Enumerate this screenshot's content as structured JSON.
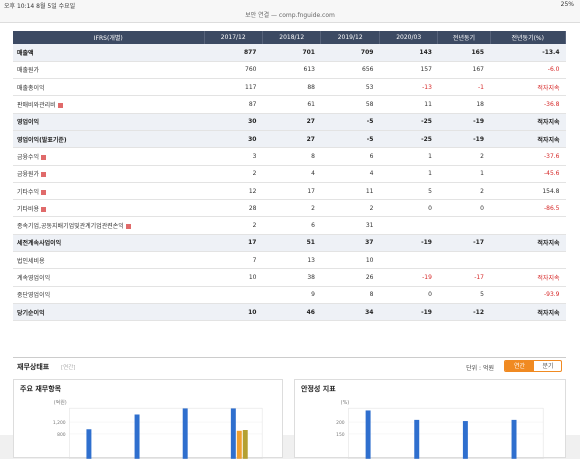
{
  "statusbar": {
    "time": "오후 10:14  8월 5일 수요일",
    "battery": "25%"
  },
  "urlbar": {
    "text": "보안 연결 — comp.fnguide.com"
  },
  "table": {
    "headers": [
      "IFRS(개별)",
      "2017/12",
      "2018/12",
      "2019/12",
      "2020/03",
      "전년동기",
      "전년동기(%)"
    ],
    "rows": [
      {
        "label": "매출액",
        "values": [
          "877",
          "701",
          "709",
          "143",
          "165",
          "-13.4"
        ],
        "bold": true,
        "shade": true,
        "plus": false
      },
      {
        "label": "매출원가",
        "values": [
          "760",
          "613",
          "656",
          "157",
          "167",
          "-6.0"
        ],
        "bold": false,
        "shade": false,
        "plus": false
      },
      {
        "label": "매출총이익",
        "values": [
          "117",
          "88",
          "53",
          "-13",
          "-1",
          "적자지속"
        ],
        "bold": false,
        "shade": false,
        "plus": false
      },
      {
        "label": "판매비와관리비",
        "values": [
          "87",
          "61",
          "58",
          "11",
          "18",
          "-36.8"
        ],
        "bold": false,
        "shade": false,
        "plus": true
      },
      {
        "label": "영업이익",
        "values": [
          "30",
          "27",
          "-5",
          "-25",
          "-19",
          "적자지속"
        ],
        "bold": true,
        "shade": true,
        "plus": false
      },
      {
        "label": "영업이익(발표기준)",
        "values": [
          "30",
          "27",
          "-5",
          "-25",
          "-19",
          "적자지속"
        ],
        "bold": true,
        "shade": true,
        "plus": false
      },
      {
        "label": "금융수익",
        "values": [
          "3",
          "8",
          "6",
          "1",
          "2",
          "-37.6"
        ],
        "bold": false,
        "shade": false,
        "plus": true
      },
      {
        "label": "금융원가",
        "values": [
          "2",
          "4",
          "4",
          "1",
          "1",
          "-45.6"
        ],
        "bold": false,
        "shade": false,
        "plus": true
      },
      {
        "label": "기타수익",
        "values": [
          "12",
          "17",
          "11",
          "5",
          "2",
          "154.8"
        ],
        "bold": false,
        "shade": false,
        "plus": true
      },
      {
        "label": "기타비용",
        "values": [
          "28",
          "2",
          "2",
          "0",
          "0",
          "-86.5"
        ],
        "bold": false,
        "shade": false,
        "plus": true
      },
      {
        "label": "종속기업,공동지배기업및관계기업관련손익",
        "values": [
          "2",
          "6",
          "31",
          "",
          "",
          ""
        ],
        "bold": false,
        "shade": false,
        "plus": true
      },
      {
        "label": "세전계속사업이익",
        "values": [
          "17",
          "51",
          "37",
          "-19",
          "-17",
          "적자지속"
        ],
        "bold": true,
        "shade": true,
        "plus": false
      },
      {
        "label": "법인세비용",
        "values": [
          "7",
          "13",
          "10",
          "",
          "",
          ""
        ],
        "bold": false,
        "shade": false,
        "plus": false
      },
      {
        "label": "계속영업이익",
        "values": [
          "10",
          "38",
          "26",
          "-19",
          "-17",
          "적자지속"
        ],
        "bold": false,
        "shade": false,
        "plus": false
      },
      {
        "label": "중단영업이익",
        "values": [
          "",
          "9",
          "8",
          "0",
          "5",
          "-93.9"
        ],
        "bold": false,
        "shade": false,
        "plus": false
      },
      {
        "label": "당기순이익",
        "values": [
          "10",
          "46",
          "34",
          "-19",
          "-12",
          "적자지속"
        ],
        "bold": true,
        "shade": true,
        "plus": false
      }
    ]
  },
  "section": {
    "title": "재무상태표",
    "sub": "[연간]",
    "unit": "단위 : 억원",
    "toggle_on": "연간",
    "toggle_off": "분기"
  },
  "panel_left": {
    "title": "주요 재무항목"
  },
  "panel_right": {
    "title": "안정성 지표"
  },
  "chart_data": [
    {
      "type": "bar",
      "title": "주요 재무항목",
      "ylabel": "(억원)",
      "yticks": [
        "1,200",
        "800"
      ],
      "series": [
        {
          "name": "blue",
          "color": "#2f6fce",
          "values": [
            780,
            1170,
            1330,
            1330
          ]
        },
        {
          "name": "orange",
          "color": "#f0a030",
          "values": [
            0,
            0,
            0,
            740
          ]
        },
        {
          "name": "olive",
          "color": "#b5a030",
          "values": [
            0,
            0,
            0,
            760
          ]
        }
      ]
    },
    {
      "type": "bar",
      "title": "안정성 지표",
      "ylabel": "(%)",
      "yticks": [
        "200",
        "150"
      ],
      "series": [
        {
          "name": "blue",
          "color": "#2f6fce",
          "values": [
            205,
            165,
            160,
            165
          ]
        }
      ]
    }
  ]
}
